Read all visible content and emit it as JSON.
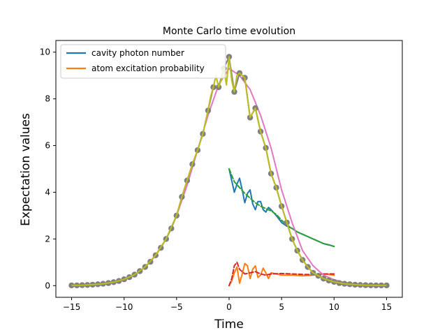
{
  "chart_data": {
    "type": "line",
    "title": "Monte Carlo time evolution",
    "xlabel": "Time",
    "ylabel": "Expectation values",
    "xlim": [
      -16.5,
      16.5
    ],
    "ylim": [
      -0.5,
      10.5
    ],
    "xticks": [
      -15,
      -10,
      -5,
      0,
      5,
      10,
      15
    ],
    "yticks": [
      0,
      2,
      4,
      6,
      8,
      10
    ],
    "legend_position": "top-left",
    "legend": [
      {
        "label": "cavity photon number",
        "color": "#1f77b4"
      },
      {
        "label": "atom excitation probability",
        "color": "#ff7f0e"
      }
    ],
    "series": [
      {
        "name": "cavity photon number",
        "color": "#1f77b4",
        "x": [
          0,
          0.25,
          0.5,
          0.75,
          1,
          1.25,
          1.5,
          1.75,
          2,
          2.25,
          2.5,
          2.75,
          3,
          3.25,
          3.5,
          3.75,
          4,
          4.5,
          5,
          5.5,
          6,
          6.5,
          7,
          7.5,
          8,
          8.5,
          9,
          9.5,
          10
        ],
        "y": [
          5.0,
          4.5,
          4.0,
          4.35,
          4.6,
          4.1,
          3.55,
          3.95,
          4.1,
          3.5,
          3.25,
          3.6,
          3.6,
          3.25,
          3.15,
          3.35,
          3.25,
          3.0,
          2.7,
          2.55,
          2.45,
          2.3,
          2.2,
          2.1,
          2.0,
          1.9,
          1.8,
          1.75,
          1.68
        ]
      },
      {
        "color": "#2ca02c",
        "dashed": true,
        "x": [
          0,
          0.5,
          1,
          1.5,
          2,
          2.5,
          3,
          3.5,
          4,
          4.5,
          5,
          5.5,
          6,
          6.5,
          7,
          7.5,
          8,
          8.5,
          9,
          9.5,
          10
        ],
        "y": [
          5.0,
          4.45,
          4.2,
          3.95,
          3.75,
          3.55,
          3.4,
          3.3,
          3.2,
          3.05,
          2.8,
          2.6,
          2.45,
          2.3,
          2.2,
          2.1,
          2.0,
          1.9,
          1.8,
          1.74,
          1.68
        ]
      },
      {
        "name": "atom excitation probability",
        "color": "#ff7f0e",
        "x": [
          0,
          0.25,
          0.5,
          0.75,
          1,
          1.25,
          1.5,
          1.75,
          2,
          2.25,
          2.5,
          2.75,
          3,
          3.25,
          3.5,
          3.75,
          4,
          4.5,
          5,
          6,
          7,
          8,
          9,
          10
        ],
        "y": [
          0.0,
          0.2,
          0.55,
          0.8,
          0.1,
          0.5,
          0.95,
          0.85,
          0.3,
          0.7,
          0.85,
          0.35,
          0.45,
          0.75,
          0.55,
          0.3,
          0.55,
          0.5,
          0.45,
          0.45,
          0.42,
          0.45,
          0.5,
          0.45
        ]
      },
      {
        "color": "#d62728",
        "dashed": true,
        "x": [
          0,
          0.25,
          0.5,
          0.75,
          1,
          1.5,
          2,
          2.5,
          3,
          3.5,
          4,
          5,
          6,
          7,
          8,
          9,
          10
        ],
        "y": [
          0.0,
          0.3,
          0.85,
          1.0,
          0.7,
          0.5,
          0.55,
          0.6,
          0.5,
          0.45,
          0.5,
          0.52,
          0.5,
          0.48,
          0.47,
          0.5,
          0.5
        ]
      },
      {
        "color": "#e377c2",
        "x": [
          -15,
          -14,
          -13,
          -12,
          -11,
          -10,
          -9,
          -8,
          -7,
          -6,
          -5,
          -4,
          -3,
          -2,
          -1,
          0,
          1,
          2,
          3,
          4,
          5,
          6,
          7,
          8,
          9,
          10,
          11,
          12,
          13,
          14,
          15
        ],
        "y": [
          0.01,
          0.02,
          0.04,
          0.08,
          0.15,
          0.27,
          0.47,
          0.8,
          1.3,
          2.0,
          3.0,
          4.3,
          5.8,
          7.3,
          8.6,
          9.3,
          9.0,
          8.4,
          7.3,
          5.9,
          4.1,
          2.7,
          1.5,
          0.85,
          0.45,
          0.25,
          0.13,
          0.06,
          0.03,
          0.015,
          0.01
        ]
      },
      {
        "color": "#bcbd22",
        "x": [
          -15,
          -14,
          -13,
          -12,
          -11,
          -10,
          -9,
          -8,
          -7,
          -6,
          -5,
          -4.5,
          -4,
          -3.5,
          -3,
          -2.5,
          -2,
          -1.75,
          -1.5,
          -1.25,
          -1,
          -0.75,
          -0.5,
          -0.25,
          0,
          0.25,
          0.5,
          0.75,
          1,
          1.5,
          2,
          2.5,
          3,
          3.5,
          4,
          4.5,
          5,
          5.5,
          6,
          6.5,
          7,
          7.5,
          8,
          9,
          10,
          11,
          12,
          13,
          14,
          15
        ],
        "y": [
          0.01,
          0.02,
          0.04,
          0.08,
          0.15,
          0.27,
          0.47,
          0.8,
          1.3,
          2.0,
          3.0,
          3.8,
          4.5,
          5.2,
          5.8,
          6.5,
          7.5,
          8.1,
          8.5,
          9.0,
          8.5,
          8.8,
          9.3,
          8.6,
          9.8,
          8.8,
          8.3,
          9.0,
          9.1,
          8.9,
          7.2,
          7.6,
          6.6,
          5.9,
          4.8,
          4.2,
          3.4,
          2.7,
          2.0,
          1.5,
          1.1,
          0.8,
          0.55,
          0.3,
          0.16,
          0.08,
          0.04,
          0.02,
          0.01,
          0.01
        ]
      },
      {
        "color": "#7f7f7f",
        "marker": "o",
        "x": [
          -15,
          -14.5,
          -14,
          -13.5,
          -13,
          -12.5,
          -12,
          -11.5,
          -11,
          -10.5,
          -10,
          -9.5,
          -9,
          -8.5,
          -8,
          -7.5,
          -7,
          -6.5,
          -6,
          -5.5,
          -5,
          -4.5,
          -4,
          -3.5,
          -3,
          -2.5,
          -2,
          -1.5,
          -1,
          -0.5,
          0,
          0.5,
          1,
          1.5,
          2,
          2.5,
          3,
          3.5,
          4,
          4.5,
          5,
          5.5,
          6,
          6.5,
          7,
          7.5,
          8,
          8.5,
          9,
          9.5,
          10,
          10.5,
          11,
          11.5,
          12,
          12.5,
          13,
          13.5,
          14,
          14.5,
          15
        ],
        "y": [
          0.01,
          0.01,
          0.02,
          0.03,
          0.04,
          0.06,
          0.08,
          0.11,
          0.15,
          0.2,
          0.27,
          0.36,
          0.47,
          0.62,
          0.8,
          1.02,
          1.3,
          1.62,
          2.0,
          2.45,
          3.0,
          3.8,
          4.5,
          5.2,
          5.8,
          6.5,
          7.5,
          8.5,
          8.5,
          9.3,
          9.8,
          8.3,
          9.1,
          8.9,
          7.2,
          7.6,
          6.6,
          5.9,
          4.8,
          4.2,
          3.4,
          2.7,
          2.0,
          1.5,
          1.1,
          0.8,
          0.55,
          0.42,
          0.3,
          0.22,
          0.16,
          0.11,
          0.08,
          0.06,
          0.04,
          0.03,
          0.02,
          0.015,
          0.01,
          0.01,
          0.01
        ]
      }
    ]
  }
}
